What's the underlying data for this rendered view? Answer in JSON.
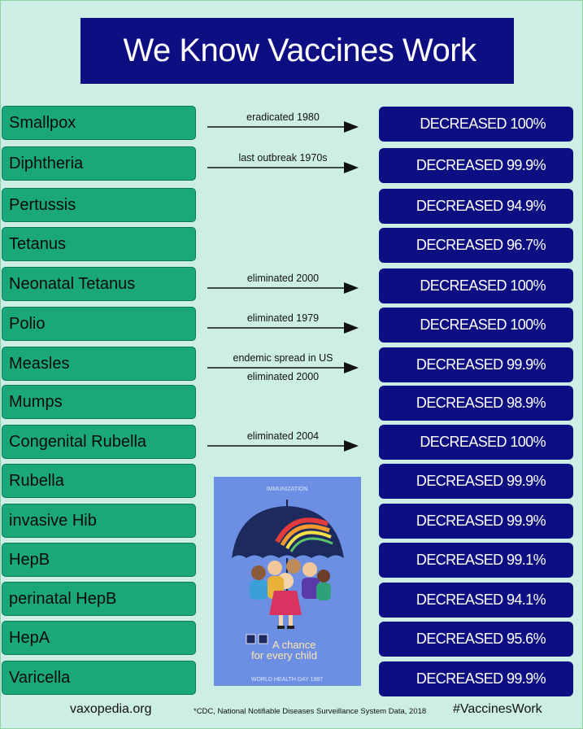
{
  "title": "We Know Vaccines Work",
  "rows": [
    {
      "disease": "Smallpox",
      "result": "DECREASED 100%",
      "note": "eradicated 1980"
    },
    {
      "disease": "Diphtheria",
      "result": "DECREASED 99.9%",
      "note": "last outbreak 1970s"
    },
    {
      "disease": "Pertussis",
      "result": "DECREASED 94.9%"
    },
    {
      "disease": "Tetanus",
      "result": "DECREASED 96.7%"
    },
    {
      "disease": "Neonatal Tetanus",
      "result": "DECREASED 100%",
      "note": "eliminated 2000"
    },
    {
      "disease": "Polio",
      "result": "DECREASED 100%",
      "note": "eliminated 1979"
    },
    {
      "disease": "Measles",
      "result": "DECREASED 99.9%",
      "note": "endemic spread in US",
      "note2": "eliminated 2000"
    },
    {
      "disease": "Mumps",
      "result": "DECREASED 98.9%"
    },
    {
      "disease": "Congenital Rubella",
      "result": "DECREASED 100%",
      "note": "eliminated 2004"
    },
    {
      "disease": "Rubella",
      "result": "DECREASED 99.9%"
    },
    {
      "disease": "invasive Hib",
      "result": "DECREASED 99.9%"
    },
    {
      "disease": "HepB",
      "result": "DECREASED 99.1%"
    },
    {
      "disease": "perinatal HepB",
      "result": "DECREASED 94.1%"
    },
    {
      "disease": "HepA",
      "result": "DECREASED 95.6%"
    },
    {
      "disease": "Varicella",
      "result": "DECREASED 99.9%"
    }
  ],
  "poster": {
    "top_text": "IMMUNIZATION",
    "slogan_line1": "A chance",
    "slogan_line2": "for every child",
    "bottom_text": "WORLD HEALTH DAY 1987"
  },
  "footer": {
    "site": "vaxopedia.org",
    "source": "*CDC, National Notifiable Diseases Surveillance System Data, 2018",
    "hashtag": "#VaccinesWork"
  },
  "colors": {
    "background": "#cdeee4",
    "disease_box": "#1aa87a",
    "result_box": "#0c0e82",
    "title_box": "#0c0e82"
  }
}
